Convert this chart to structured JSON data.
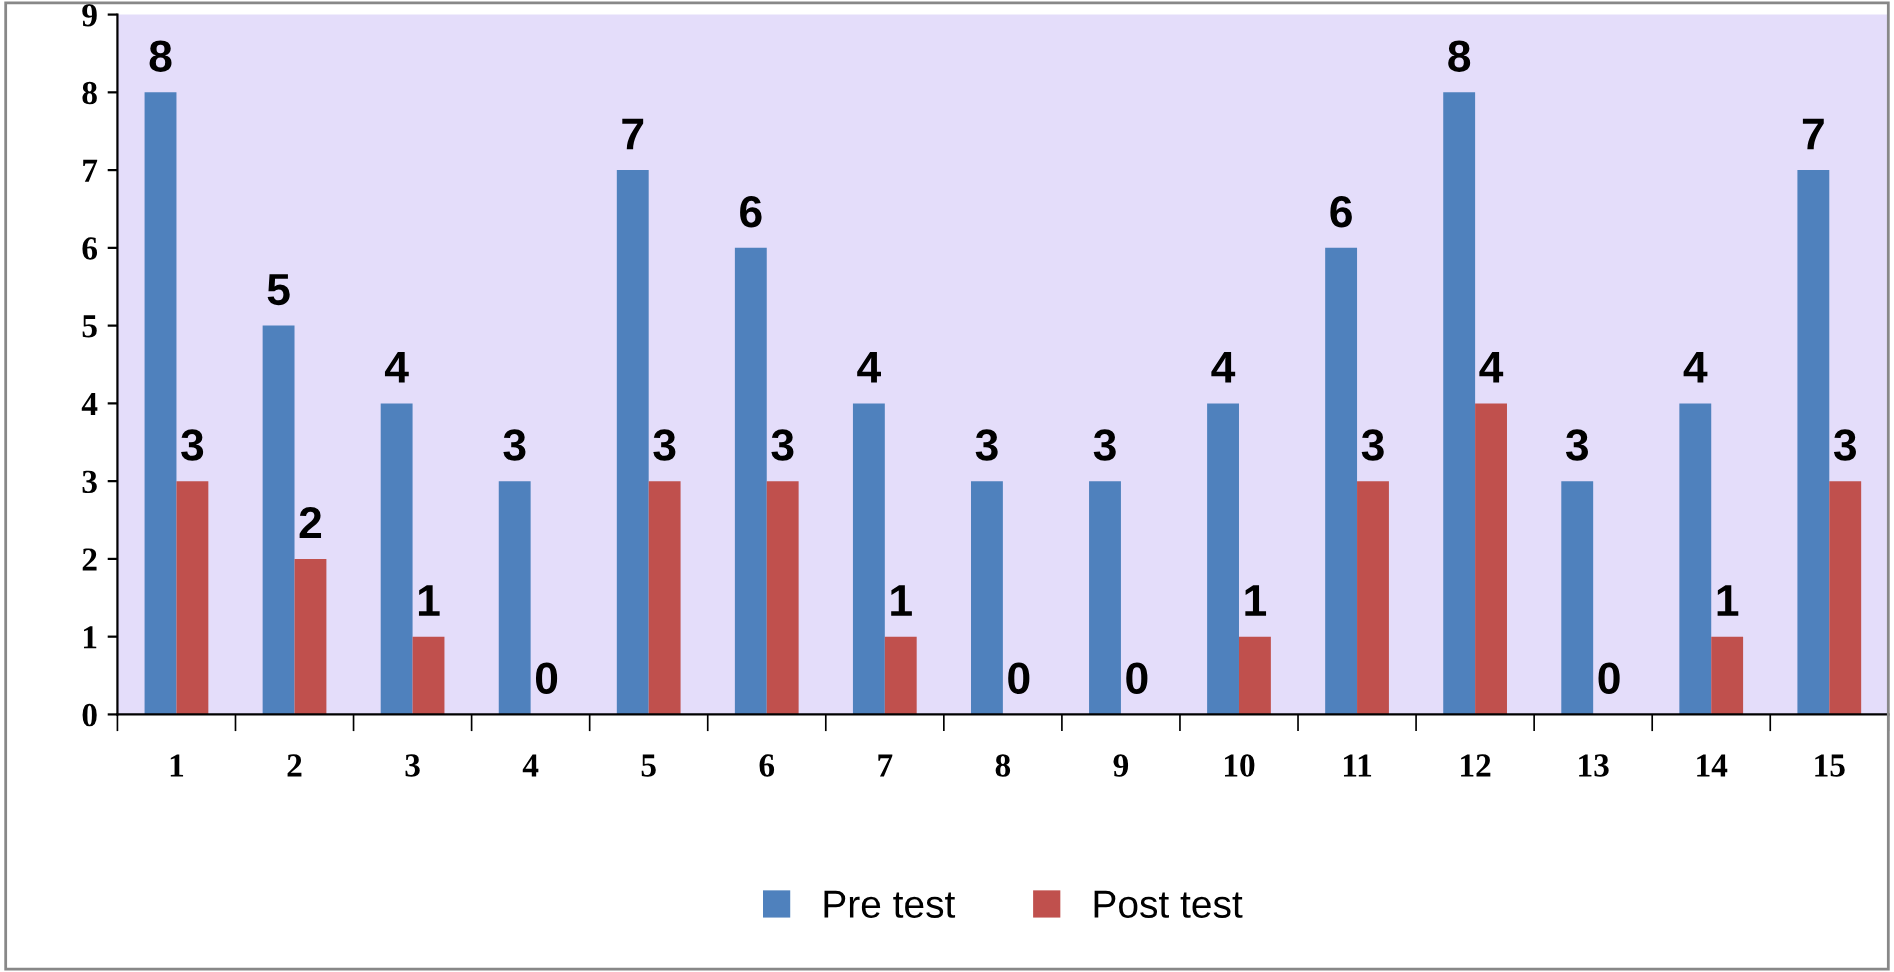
{
  "chart_data": {
    "type": "bar",
    "categories": [
      "1",
      "2",
      "3",
      "4",
      "5",
      "6",
      "7",
      "8",
      "9",
      "10",
      "11",
      "12",
      "13",
      "14",
      "15"
    ],
    "series": [
      {
        "name": "Pre test",
        "color": "#4f81bd",
        "values": [
          8,
          5,
          4,
          3,
          7,
          6,
          4,
          3,
          3,
          4,
          6,
          8,
          3,
          4,
          7
        ]
      },
      {
        "name": "Post test",
        "color": "#c0504d",
        "values": [
          3,
          2,
          1,
          0,
          3,
          3,
          1,
          0,
          0,
          1,
          3,
          4,
          0,
          1,
          3
        ]
      }
    ],
    "ylim": [
      0,
      9
    ],
    "yticks": [
      0,
      1,
      2,
      3,
      4,
      5,
      6,
      7,
      8,
      9
    ],
    "grid": false,
    "legend": "bottom",
    "data_labels": true
  }
}
